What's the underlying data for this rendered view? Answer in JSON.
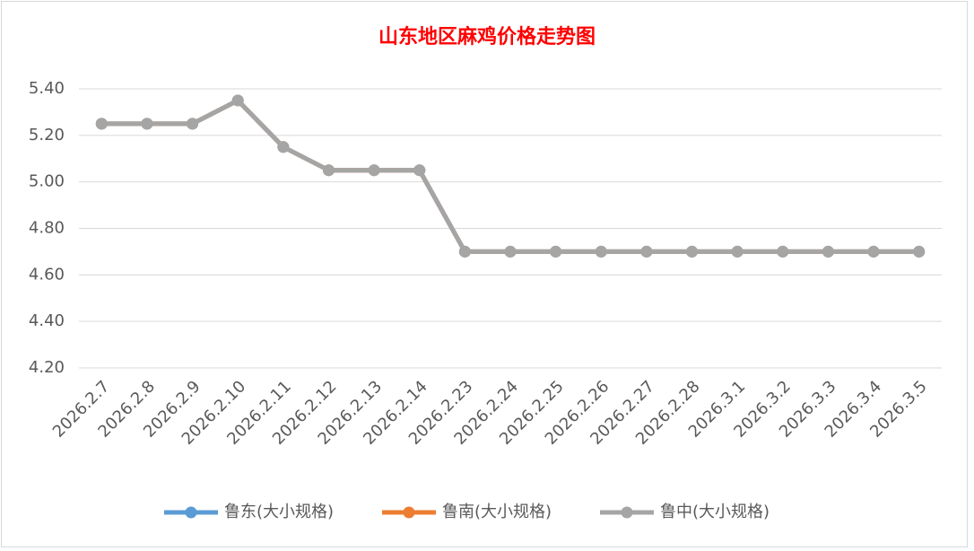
{
  "chart_data": {
    "type": "line",
    "title": "山东地区麻鸡价格走势图",
    "categories": [
      "2026.2.7",
      "2026.2.8",
      "2026.2.9",
      "2026.2.10",
      "2026.2.11",
      "2026.2.12",
      "2026.2.13",
      "2026.2.14",
      "2026.2.23",
      "2026.2.24",
      "2026.2.25",
      "2026.2.26",
      "2026.2.27",
      "2026.2.28",
      "2026.3.1",
      "2026.3.2",
      "2026.3.3",
      "2026.3.4",
      "2026.3.5"
    ],
    "series": [
      {
        "name": "鲁东(大小规格)",
        "color": "#5b9bd5",
        "values": [
          5.25,
          5.25,
          5.25,
          5.35,
          5.15,
          5.05,
          5.05,
          5.05,
          4.7,
          4.7,
          4.7,
          4.7,
          4.7,
          4.7,
          4.7,
          4.7,
          4.7,
          4.7,
          4.7
        ]
      },
      {
        "name": "鲁南(大小规格)",
        "color": "#ed7d31",
        "values": [
          5.25,
          5.25,
          5.25,
          5.35,
          5.15,
          5.05,
          5.05,
          5.05,
          4.7,
          4.7,
          4.7,
          4.7,
          4.7,
          4.7,
          4.7,
          4.7,
          4.7,
          4.7,
          4.7
        ]
      },
      {
        "name": "鲁中(大小规格)",
        "color": "#a5a5a5",
        "values": [
          5.25,
          5.25,
          5.25,
          5.35,
          5.15,
          5.05,
          5.05,
          5.05,
          4.7,
          4.7,
          4.7,
          4.7,
          4.7,
          4.7,
          4.7,
          4.7,
          4.7,
          4.7,
          4.7
        ]
      }
    ],
    "ylim": [
      4.2,
      5.4
    ],
    "yticks": [
      {
        "value": 4.2,
        "label": "4.20"
      },
      {
        "value": 4.4,
        "label": "4.40"
      },
      {
        "value": 4.6,
        "label": "4.60"
      },
      {
        "value": 4.8,
        "label": "4.80"
      },
      {
        "value": 5.0,
        "label": "5.00"
      },
      {
        "value": 5.2,
        "label": "5.20"
      },
      {
        "value": 5.4,
        "label": "5.40"
      }
    ],
    "grid": true,
    "legend": "bottom"
  }
}
